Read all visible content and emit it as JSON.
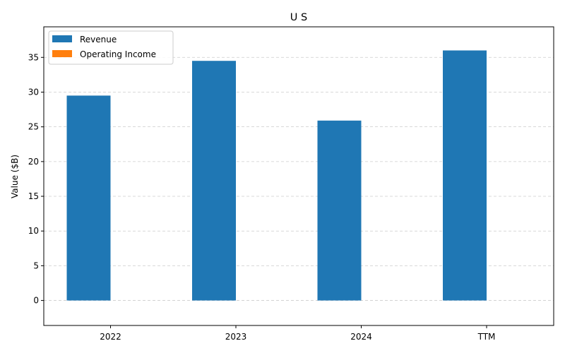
{
  "chart_data": {
    "type": "bar",
    "title": "U S",
    "xlabel": "",
    "ylabel": "Value ($B)",
    "categories": [
      "2022",
      "2023",
      "2024",
      "TTM"
    ],
    "series": [
      {
        "name": "Revenue",
        "color": "#1f77b4",
        "values": [
          29.5,
          34.5,
          25.9,
          36.0
        ]
      },
      {
        "name": "Operating Income",
        "color": "#ff7f0e",
        "values": [
          0,
          0,
          0,
          0
        ]
      }
    ],
    "ylim": [
      -3.6,
      39.4
    ],
    "yticks": [
      0,
      5,
      10,
      15,
      20,
      25,
      30,
      35
    ],
    "grid": "horizontal dashed",
    "legend_position": "top-left"
  }
}
